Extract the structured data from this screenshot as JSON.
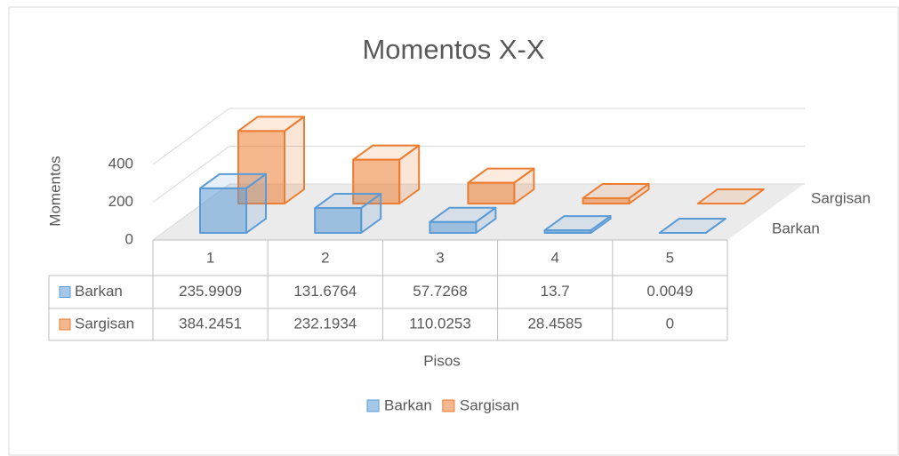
{
  "chart_data": {
    "type": "bar3d",
    "title": "Momentos X-X",
    "y_label": "Momentos",
    "x_label": "Pisos",
    "categories": [
      "1",
      "2",
      "3",
      "4",
      "5"
    ],
    "series": [
      {
        "name": "Barkan",
        "color": "#5b9bd5",
        "values": [
          235.9909,
          131.6764,
          57.7268,
          13.7,
          0.0049
        ]
      },
      {
        "name": "Sargisan",
        "color": "#ed7d31",
        "values": [
          384.2451,
          232.1934,
          110.0253,
          28.4585,
          0
        ]
      }
    ],
    "ylim": [
      0,
      400
    ],
    "yticks": [
      0,
      200,
      400
    ],
    "grid": true,
    "legend": "bottom",
    "data_table": true
  }
}
